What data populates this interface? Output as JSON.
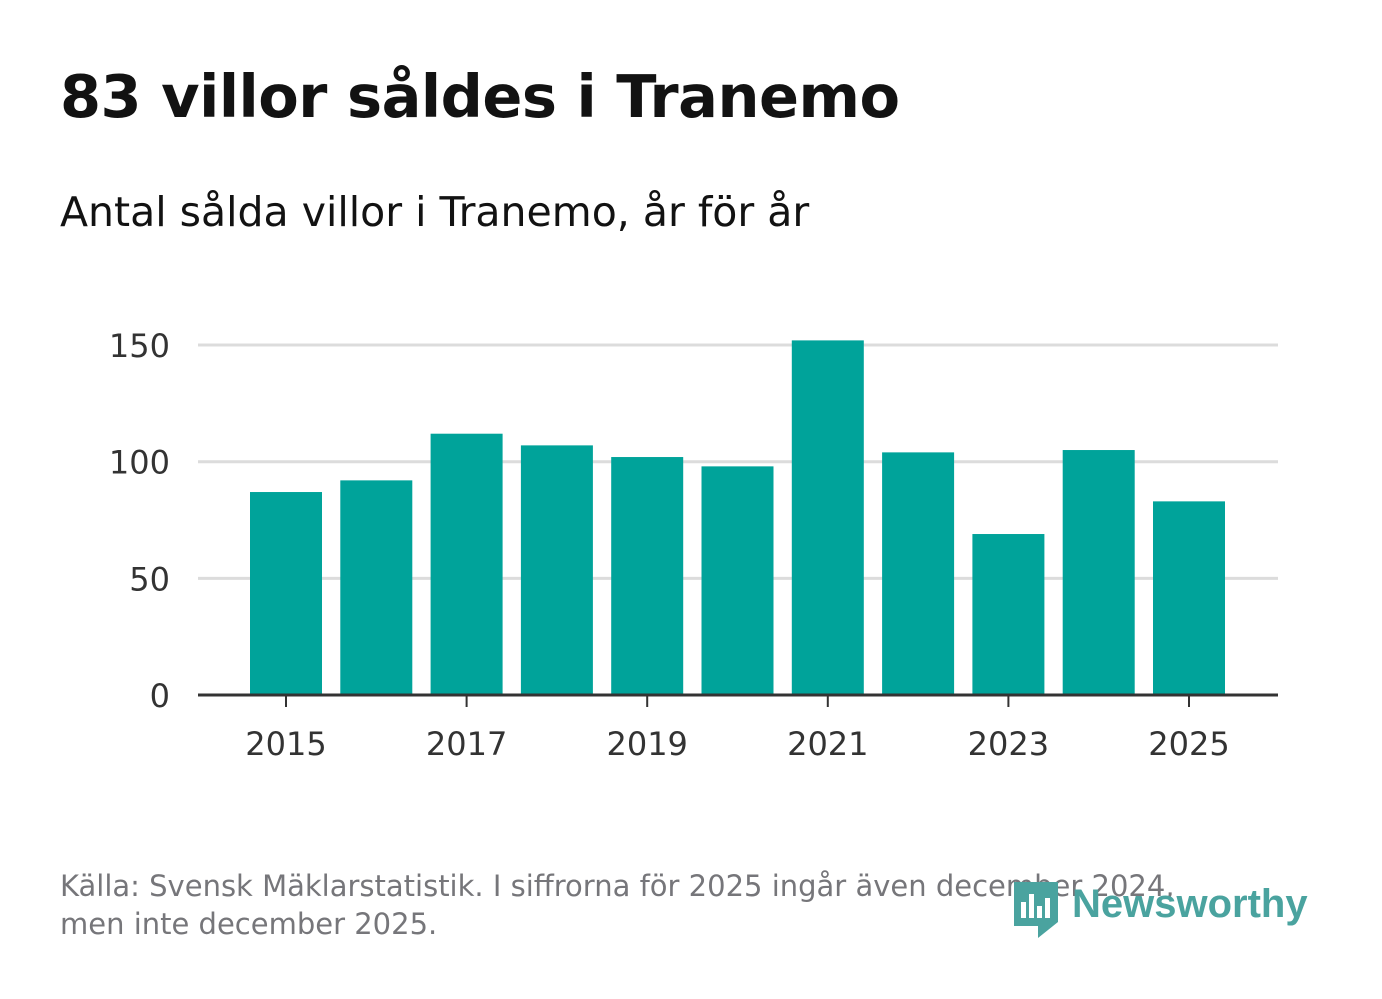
{
  "header": {
    "title": "83 villor såldes i Tranemo",
    "subtitle": "Antal sålda villor i Tranemo, år för år"
  },
  "footer": {
    "source_line1": "Källa: Svensk Mäklarstatistik. I siffrorna för 2025 ingår även december 2024,",
    "source_line2": "men inte december 2025.",
    "logo_text": "Newsworthy"
  },
  "colors": {
    "bar": "#00a39a",
    "grid": "#dcdcdc",
    "axis": "#333333",
    "tick_text": "#333333",
    "logo": "#4aa39f"
  },
  "chart_data": {
    "type": "bar",
    "title": "83 villor såldes i Tranemo",
    "subtitle": "Antal sålda villor i Tranemo, år för år",
    "xlabel": "",
    "ylabel": "",
    "categories": [
      "2015",
      "2016",
      "2017",
      "2018",
      "2019",
      "2020",
      "2021",
      "2022",
      "2023",
      "2024",
      "2025"
    ],
    "values": [
      87,
      92,
      112,
      107,
      102,
      98,
      152,
      104,
      69,
      105,
      83
    ],
    "x_tick_labels": [
      "2015",
      "2017",
      "2019",
      "2021",
      "2023",
      "2025"
    ],
    "y_ticks": [
      0,
      50,
      100,
      150
    ],
    "ylim": [
      0,
      165
    ],
    "grid": true
  }
}
